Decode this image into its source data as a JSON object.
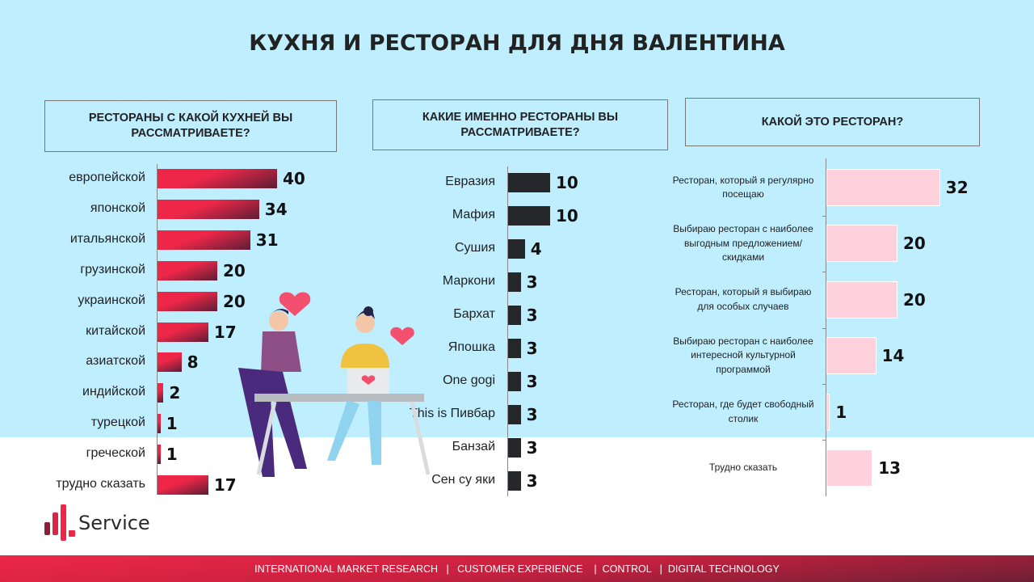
{
  "title": "КУХНЯ И РЕСТОРАН ДЛЯ ДНЯ ВАЛЕНТИНА",
  "logo_text": "Service",
  "footer": "INTERNATIONAL MARKET RESEARCH   |   CUSTOMER EXPERIENCE    |  CONTROL   |  DIGITAL TECHNOLOGY",
  "chart_data": [
    {
      "type": "bar",
      "orientation": "horizontal",
      "title": "РЕСТОРАНЫ С КАКОЙ КУХНЕЙ ВЫ РАССМАТРИВАЕТЕ?",
      "categories": [
        "европейской",
        "японской",
        "итальянской",
        "грузинской",
        "украинской",
        "китайской",
        "азиатской",
        "индийской",
        "турецкой",
        "греческой",
        "трудно сказать"
      ],
      "values": [
        40,
        34,
        31,
        20,
        20,
        17,
        8,
        2,
        1,
        1,
        17
      ],
      "color": "#ee2749"
    },
    {
      "type": "bar",
      "orientation": "horizontal",
      "title": "КАКИЕ ИМЕННО РЕСТОРАНЫ ВЫ РАССМАТРИВАЕТЕ?",
      "categories": [
        "Евразия",
        "Мафия",
        "Сушия",
        "Маркони",
        "Бархат",
        "Япошка",
        "One gogi",
        "This is Пивбар",
        "Банзай",
        "Сен су яки"
      ],
      "values": [
        10,
        10,
        4,
        3,
        3,
        3,
        3,
        3,
        3,
        3
      ],
      "color": "#26272b"
    },
    {
      "type": "bar",
      "orientation": "horizontal",
      "title": "КАКОЙ ЭТО РЕСТОРАН?",
      "categories": [
        "Ресторан, который я регулярно посещаю",
        "Выбираю ресторан с наиболее выгодным предложением/скидками",
        "Ресторан, который я выбираю для особых случаев",
        "Выбираю ресторан с наиболее интересной культурной программой",
        "Ресторан, где будет свободный столик",
        "Трудно сказать"
      ],
      "values": [
        32,
        20,
        20,
        14,
        1,
        13
      ],
      "color": "#ffd1dc"
    }
  ]
}
